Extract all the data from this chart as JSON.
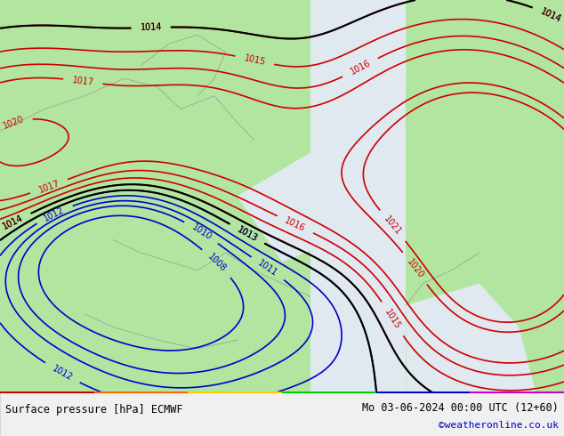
{
  "title_left": "Surface pressure [hPa] ECMWF",
  "title_right": "Mo 03-06-2024 00:00 UTC (12+60)",
  "watermark": "©weatheronline.co.uk",
  "bg_color": "#e8e8e8",
  "land_color": "#b2e5a0",
  "sea_color": "#e0e8f0",
  "contour_color_low": "#0000cc",
  "contour_color_high": "#cc0000",
  "contour_color_main": "#000000",
  "bottom_bar_color": "#f0f0f0",
  "bottom_bar_height": 0.1,
  "font_size_labels": 8,
  "font_size_bottom": 9,
  "watermark_color": "#0000cc"
}
